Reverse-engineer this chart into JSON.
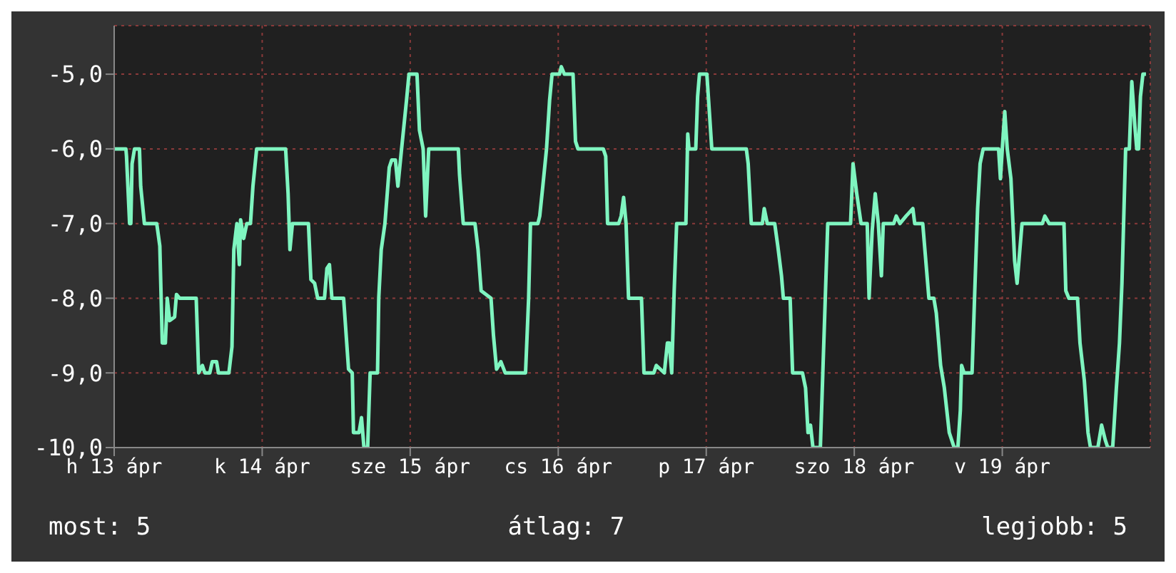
{
  "chart_data": {
    "type": "line",
    "x": [
      "--04-13T00:00",
      "--04-13T01:54",
      "--04-13T02:00",
      "--04-13T02:30",
      "--04-13T02:42",
      "--04-13T02:54",
      "--04-13T03:18",
      "--04-13T04:06",
      "--04-13T04:18",
      "--04-13T04:54",
      "--04-13T06:54",
      "--04-13T07:24",
      "--04-13T07:48",
      "--04-13T08:18",
      "--04-13T08:36",
      "--04-13T09:00",
      "--04-13T09:48",
      "--04-13T10:06",
      "--04-13T10:36",
      "--04-13T13:18",
      "--04-13T13:42",
      "--04-13T14:18",
      "--04-13T14:42",
      "--04-13T15:30",
      "--04-13T15:54",
      "--04-13T16:36",
      "--04-13T16:54",
      "--04-13T18:36",
      "--04-13T19:06",
      "--04-13T19:24",
      "--04-13T19:54",
      "--04-13T20:18",
      "--04-13T20:30",
      "--04-13T21:00",
      "--04-13T21:30",
      "--04-13T22:06",
      "--04-13T22:30",
      "--04-13T23:06",
      "--04-14T03:48",
      "--04-14T04:12",
      "--04-14T04:30",
      "--04-14T04:54",
      "--04-14T07:30",
      "--04-14T07:54",
      "--04-14T08:30",
      "--04-14T09:00",
      "--04-14T10:06",
      "--04-14T10:30",
      "--04-14T10:54",
      "--04-14T11:18",
      "--04-14T13:12",
      "--04-14T14:00",
      "--04-14T14:36",
      "--04-14T14:48",
      "--04-14T15:42",
      "--04-14T16:06",
      "--04-14T16:30",
      "--04-14T17:06",
      "--04-14T17:30",
      "--04-14T18:42",
      "--04-14T18:54",
      "--04-14T19:18",
      "--04-14T19:54",
      "--04-14T20:36",
      "--04-14T21:00",
      "--04-14T21:36",
      "--04-14T22:00",
      "--04-14T22:36",
      "--04-14T23:24",
      "--04-14T23:48",
      "--04-15T01:06",
      "--04-15T01:30",
      "--04-15T02:06",
      "--04-15T02:30",
      "--04-15T03:00",
      "--04-15T07:48",
      "--04-15T08:00",
      "--04-15T08:36",
      "--04-15T10:30",
      "--04-15T11:00",
      "--04-15T11:30",
      "--04-15T13:06",
      "--04-15T13:30",
      "--04-15T14:00",
      "--04-15T14:42",
      "--04-15T15:24",
      "--04-15T18:42",
      "--04-15T19:12",
      "--04-15T19:30",
      "--04-15T20:42",
      "--04-15T21:00",
      "--04-15T21:30",
      "--04-15T22:06",
      "--04-15T22:36",
      "--04-15T23:00",
      "--04-16T00:12",
      "--04-16T00:30",
      "--04-16T01:00",
      "--04-16T02:24",
      "--04-16T02:48",
      "--04-16T03:12",
      "--04-16T07:18",
      "--04-16T07:42",
      "--04-16T08:00",
      "--04-16T09:48",
      "--04-16T10:12",
      "--04-16T10:36",
      "--04-16T11:00",
      "--04-16T11:24",
      "--04-16T13:30",
      "--04-16T13:54",
      "--04-16T15:30",
      "--04-16T15:54",
      "--04-16T17:12",
      "--04-16T17:42",
      "--04-16T18:00",
      "--04-16T18:24",
      "--04-16T18:48",
      "--04-16T19:12",
      "--04-16T20:42",
      "--04-16T21:00",
      "--04-16T21:12",
      "--04-16T22:18",
      "--04-16T22:36",
      "--04-16T22:54",
      "--04-17T00:06",
      "--04-17T00:30",
      "--04-17T00:54",
      "--04-17T06:30",
      "--04-17T06:48",
      "--04-17T07:18",
      "--04-17T09:06",
      "--04-17T09:24",
      "--04-17T09:54",
      "--04-17T11:06",
      "--04-17T11:36",
      "--04-17T12:12",
      "--04-17T12:30",
      "--04-17T13:36",
      "--04-17T14:00",
      "--04-17T15:36",
      "--04-17T16:06",
      "--04-17T16:30",
      "--04-17T16:54",
      "--04-17T17:18",
      "--04-17T18:30",
      "--04-17T18:54",
      "--04-17T19:18",
      "--04-17T19:42",
      "--04-17T23:24",
      "--04-17T23:48",
      "--04-18T00:24",
      "--04-18T01:06",
      "--04-18T02:06",
      "--04-18T02:24",
      "--04-18T02:54",
      "--04-18T03:24",
      "--04-18T03:54",
      "--04-18T04:24",
      "--04-18T04:42",
      "--04-18T06:24",
      "--04-18T06:48",
      "--04-18T07:24",
      "--04-18T08:24",
      "--04-18T09:30",
      "--04-18T09:48",
      "--04-18T11:06",
      "--04-18T11:30",
      "--04-18T12:06",
      "--04-18T12:54",
      "--04-18T13:18",
      "--04-18T14:00",
      "--04-18T14:36",
      "--04-18T15:24",
      "--04-18T16:12",
      "--04-18T16:48",
      "--04-18T17:12",
      "--04-18T17:24",
      "--04-18T17:48",
      "--04-18T19:06",
      "--04-18T19:30",
      "--04-18T20:00",
      "--04-18T20:24",
      "--04-18T20:54",
      "--04-18T23:24",
      "--04-18T23:42",
      "--04-19T00:00",
      "--04-19T00:24",
      "--04-19T00:48",
      "--04-19T01:24",
      "--04-19T02:00",
      "--04-19T02:24",
      "--04-19T02:48",
      "--04-19T03:12",
      "--04-19T06:30",
      "--04-19T06:54",
      "--04-19T07:36",
      "--04-19T10:00",
      "--04-19T10:18",
      "--04-19T10:48",
      "--04-19T12:12",
      "--04-19T12:36",
      "--04-19T13:18",
      "--04-19T13:54",
      "--04-19T14:18",
      "--04-19T15:30",
      "--04-19T16:06",
      "--04-19T16:42",
      "--04-19T17:06",
      "--04-19T17:54",
      "--04-19T18:30",
      "--04-19T19:00",
      "--04-19T19:24",
      "--04-19T20:00",
      "--04-19T20:36",
      "--04-19T21:00",
      "--04-19T21:30",
      "--04-19T21:48",
      "--04-19T22:06",
      "--04-19T22:24",
      "--04-19T22:48",
      "--04-19T23:18"
    ],
    "series": [
      {
        "color": "#7ff5c0",
        "values": [
          -6,
          -6,
          -6.1,
          -7,
          -7,
          -6.2,
          -6,
          -6,
          -6.5,
          -7,
          -7,
          -7.3,
          -8.6,
          -8.6,
          -8,
          -8.3,
          -8.25,
          -7.95,
          -8,
          -8,
          -9,
          -8.9,
          -9,
          -9,
          -8.85,
          -8.85,
          -9,
          -9,
          -8.65,
          -7.35,
          -7,
          -7.55,
          -6.95,
          -7.2,
          -7,
          -7,
          -6.5,
          -6,
          -6,
          -6.6,
          -7.35,
          -7,
          -7,
          -7.75,
          -7.8,
          -8,
          -8,
          -7.6,
          -7.55,
          -8,
          -8,
          -8.95,
          -9,
          -9.8,
          -9.8,
          -9.6,
          -10,
          -10,
          -9,
          -9,
          -8,
          -7.35,
          -7,
          -6.25,
          -6.15,
          -6.15,
          -6.5,
          -6,
          -5.35,
          -5,
          -5,
          -5.75,
          -6,
          -6.9,
          -6,
          -6,
          -6.35,
          -7,
          -7,
          -7.35,
          -7.9,
          -8,
          -8.5,
          -8.95,
          -8.85,
          -9,
          -9,
          -8,
          -7,
          -7,
          -6.9,
          -6.5,
          -6,
          -5.35,
          -5,
          -5,
          -4.9,
          -5,
          -5,
          -5.9,
          -6,
          -6,
          -6.1,
          -7,
          -7,
          -6.9,
          -6.65,
          -7,
          -8,
          -8,
          -9,
          -9,
          -8.9,
          -9,
          -8.6,
          -8.6,
          -9,
          -7.9,
          -7,
          -7,
          -5.8,
          -6,
          -6,
          -5.3,
          -5,
          -5,
          -5.5,
          -6,
          -6,
          -6.2,
          -7,
          -7,
          -6.8,
          -7,
          -7,
          -7.3,
          -7.7,
          -8,
          -8,
          -9,
          -9,
          -9.2,
          -9.8,
          -9.7,
          -10,
          -10,
          -9,
          -8,
          -7,
          -7,
          -6.2,
          -6.6,
          -7,
          -7,
          -8,
          -7.1,
          -6.6,
          -7,
          -7.7,
          -7,
          -7,
          -6.9,
          -7,
          -6.9,
          -6.8,
          -7,
          -7,
          -7.4,
          -8,
          -8,
          -8.2,
          -8.9,
          -9.2,
          -9.8,
          -10,
          -10,
          -9.5,
          -8.9,
          -9,
          -9,
          -8,
          -6.8,
          -6.2,
          -6,
          -6,
          -6.4,
          -6,
          -5.5,
          -6,
          -6.4,
          -7.5,
          -7.8,
          -7.4,
          -7,
          -7,
          -6.9,
          -7,
          -7,
          -7.9,
          -8,
          -8,
          -8.6,
          -9.1,
          -9.8,
          -10,
          -10,
          -9.7,
          -9.9,
          -10,
          -10,
          -9.2,
          -8.6,
          -7.8,
          -6,
          -6,
          -5.1,
          -5.7,
          -6,
          -6,
          -5.3,
          -5,
          -5
        ]
      }
    ],
    "xlim": [
      "--04-13",
      "--04-20"
    ],
    "xticks": [
      {
        "value": "--04-13",
        "label": "h 13 ápr"
      },
      {
        "value": "--04-14",
        "label": "k 14 ápr"
      },
      {
        "value": "--04-15",
        "label": "sze 15 ápr"
      },
      {
        "value": "--04-16",
        "label": "cs 16 ápr"
      },
      {
        "value": "--04-17",
        "label": "p 17 ápr"
      },
      {
        "value": "--04-18",
        "label": "szo 18 ápr"
      },
      {
        "value": "--04-19",
        "label": "v 19 ápr"
      }
    ],
    "ylim": [
      -10,
      -4.35
    ],
    "yticks": [
      {
        "value": -10,
        "label": "-10,0"
      },
      {
        "value": -9,
        "label": "-9,0"
      },
      {
        "value": -8,
        "label": "-8,0"
      },
      {
        "value": -7,
        "label": "-7,0"
      },
      {
        "value": -6,
        "label": "-6,0"
      },
      {
        "value": -5,
        "label": "-5,0"
      }
    ],
    "grid": true,
    "annotations": [
      "most: 5",
      "átlag: 7",
      "legjobb: 5"
    ]
  }
}
